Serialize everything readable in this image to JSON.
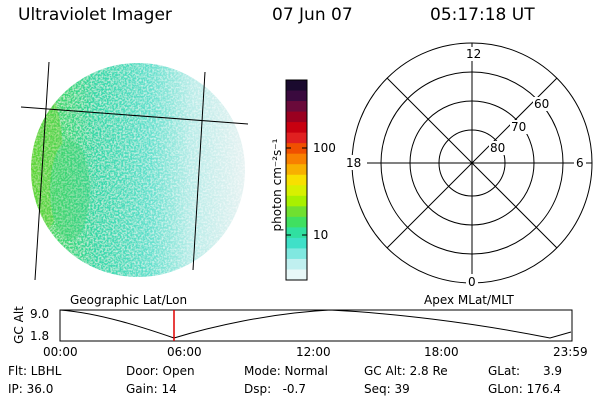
{
  "header": {
    "title": "Ultraviolet Imager",
    "date": "07 Jun 07",
    "time": "05:17:18 UT"
  },
  "colorbar": {
    "unit_label": "photon cm⁻²s⁻¹",
    "tick_labels": [
      "100",
      "10"
    ],
    "colors": [
      "#1a0a2e",
      "#3a0a3e",
      "#6a0a3a",
      "#9a0020",
      "#c80010",
      "#e02020",
      "#f05000",
      "#f88000",
      "#f8b000",
      "#f8e000",
      "#d8f000",
      "#a8f000",
      "#70e030",
      "#40e060",
      "#30e0a0",
      "#40e0c8",
      "#80e8e0",
      "#c0f0f0",
      "#e8f8f8"
    ]
  },
  "polar_plot": {
    "labels": {
      "top": "12",
      "bottom": "0",
      "left": "18",
      "right": "6",
      "lat_60": "60",
      "lat_70": "70",
      "lat_80": "80"
    }
  },
  "geo_label": "Geographic Lat/Lon",
  "apex_label": "Apex MLat/MLT",
  "altitude_plot": {
    "ylabel": "GC Alt",
    "ymax_label": "9.0",
    "ymin_label": "1.8",
    "x_ticks": [
      "00:00",
      "06:00",
      "12:00",
      "18:00",
      "23:59"
    ],
    "current_time_marker_color": "#e00000"
  },
  "footer": {
    "col1": [
      "Flt: LBHL",
      "IP: 36.0"
    ],
    "col2": [
      "Door: Open",
      "Gain: 14"
    ],
    "col3": [
      "Mode: Normal",
      "Dsp:   -0.7"
    ],
    "col4": [
      "GC Alt: 2.8 Re",
      "Seq: 39"
    ],
    "col5": [
      "GLat:      3.9",
      "GLon: 176.4"
    ]
  }
}
